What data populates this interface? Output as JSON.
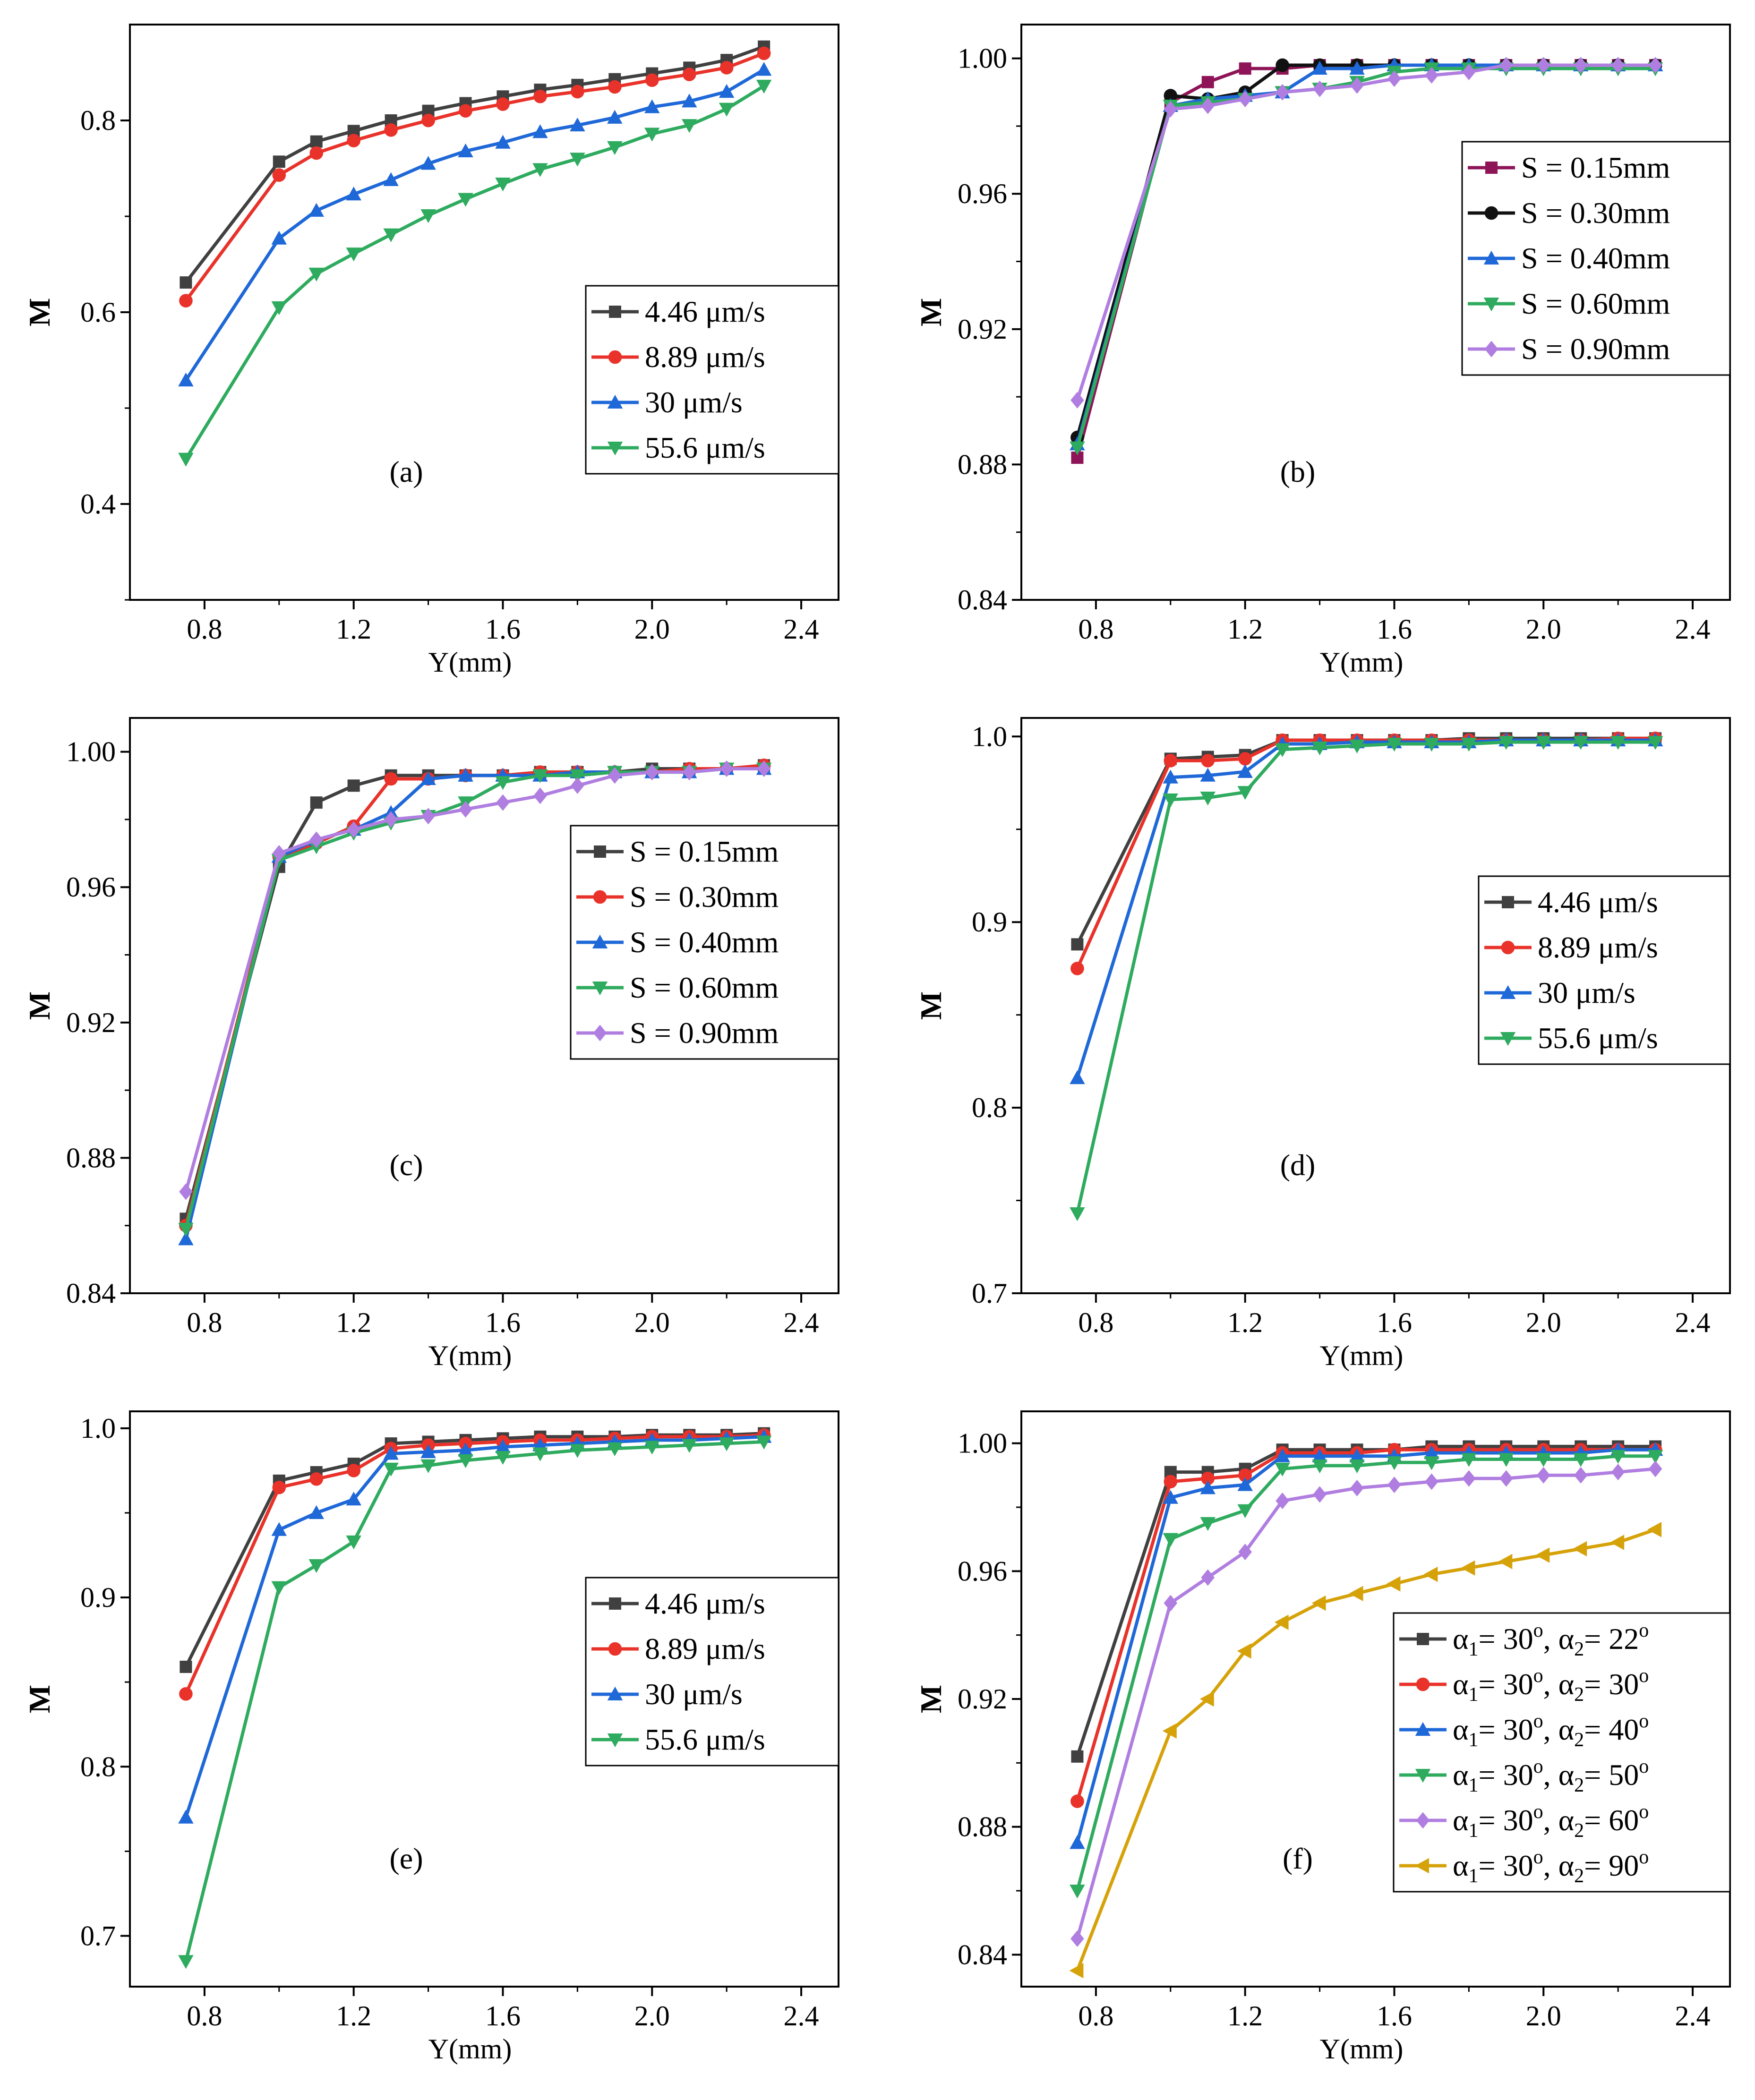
{
  "chart_data": [
    {
      "type": "line",
      "panel_label": "(a)",
      "xlabel": "Y(mm)",
      "ylabel": "M",
      "xlim": [
        0.6,
        2.5
      ],
      "ylim": [
        0.3,
        0.9
      ],
      "xticks": [
        "0.8",
        "1.2",
        "1.6",
        "2.0",
        "2.4"
      ],
      "xtick_values": [
        0.8,
        1.2,
        1.6,
        2.0,
        2.4
      ],
      "yticks": [
        "0.4",
        "0.6",
        "0.8"
      ],
      "ytick_values": [
        0.4,
        0.6,
        0.8
      ],
      "legend_position": "lower-right",
      "x": [
        0.75,
        1.0,
        1.1,
        1.2,
        1.3,
        1.4,
        1.5,
        1.6,
        1.7,
        1.8,
        1.9,
        2.0,
        2.1,
        2.2,
        2.3
      ],
      "series": [
        {
          "name": "4.46 μm/s",
          "color": "#404040",
          "marker": "square",
          "values": [
            0.631,
            0.757,
            0.778,
            0.789,
            0.8,
            0.81,
            0.818,
            0.825,
            0.832,
            0.837,
            0.843,
            0.849,
            0.855,
            0.863,
            0.877
          ]
        },
        {
          "name": "8.89 μm/s",
          "color": "#e8322a",
          "marker": "circle",
          "values": [
            0.612,
            0.743,
            0.766,
            0.779,
            0.79,
            0.8,
            0.81,
            0.817,
            0.825,
            0.83,
            0.835,
            0.842,
            0.848,
            0.855,
            0.87
          ]
        },
        {
          "name": "30 μm/s",
          "color": "#1f68d8",
          "marker": "triangle-up",
          "values": [
            0.529,
            0.677,
            0.706,
            0.723,
            0.738,
            0.755,
            0.768,
            0.777,
            0.788,
            0.795,
            0.803,
            0.814,
            0.82,
            0.83,
            0.853
          ]
        },
        {
          "name": "55.6 μm/s",
          "color": "#2eab5e",
          "marker": "triangle-down",
          "values": [
            0.447,
            0.605,
            0.64,
            0.661,
            0.681,
            0.701,
            0.718,
            0.734,
            0.749,
            0.76,
            0.772,
            0.786,
            0.795,
            0.812,
            0.836
          ]
        }
      ]
    },
    {
      "type": "line",
      "panel_label": "(b)",
      "xlabel": "Y(mm)",
      "ylabel": "M",
      "xlim": [
        0.6,
        2.5
      ],
      "ylim": [
        0.84,
        1.01
      ],
      "xticks": [
        "0.8",
        "1.2",
        "1.6",
        "2.0",
        "2.4"
      ],
      "xtick_values": [
        0.8,
        1.2,
        1.6,
        2.0,
        2.4
      ],
      "yticks": [
        "0.84",
        "0.88",
        "0.92",
        "0.96",
        "1.00"
      ],
      "ytick_values": [
        0.84,
        0.88,
        0.92,
        0.96,
        1.0
      ],
      "legend_position": "top-right",
      "x": [
        0.75,
        1.0,
        1.1,
        1.2,
        1.3,
        1.4,
        1.5,
        1.6,
        1.7,
        1.8,
        1.9,
        2.0,
        2.1,
        2.2,
        2.3
      ],
      "series": [
        {
          "name": "S = 0.15mm",
          "color": "#8e1457",
          "marker": "square",
          "values": [
            0.882,
            0.987,
            0.993,
            0.997,
            0.997,
            0.998,
            0.998,
            0.998,
            0.998,
            0.998,
            0.998,
            0.998,
            0.998,
            0.998,
            0.998
          ]
        },
        {
          "name": "S = 0.30mm",
          "color": "#111111",
          "marker": "circle",
          "values": [
            0.888,
            0.989,
            0.988,
            0.99,
            0.998,
            0.998,
            0.998,
            0.998,
            0.998,
            0.998,
            0.998,
            0.998,
            0.998,
            0.998,
            0.998
          ]
        },
        {
          "name": "S = 0.40mm",
          "color": "#1f68d8",
          "marker": "triangle-up",
          "values": [
            0.886,
            0.986,
            0.988,
            0.989,
            0.99,
            0.997,
            0.997,
            0.998,
            0.998,
            0.998,
            0.998,
            0.998,
            0.998,
            0.998,
            0.998
          ]
        },
        {
          "name": "S = 0.60mm",
          "color": "#2eab5e",
          "marker": "triangle-down",
          "values": [
            0.885,
            0.986,
            0.987,
            0.988,
            0.99,
            0.991,
            0.993,
            0.996,
            0.997,
            0.997,
            0.997,
            0.997,
            0.997,
            0.997,
            0.997
          ]
        },
        {
          "name": "S = 0.90mm",
          "color": "#b07ee0",
          "marker": "diamond",
          "values": [
            0.899,
            0.985,
            0.986,
            0.988,
            0.99,
            0.991,
            0.992,
            0.994,
            0.995,
            0.996,
            0.998,
            0.998,
            0.998,
            0.998,
            0.998
          ]
        }
      ]
    },
    {
      "type": "line",
      "panel_label": "(c)",
      "xlabel": "Y(mm)",
      "ylabel": "M",
      "xlim": [
        0.6,
        2.5
      ],
      "ylim": [
        0.84,
        1.01
      ],
      "xticks": [
        "0.8",
        "1.2",
        "1.6",
        "2.0",
        "2.4"
      ],
      "xtick_values": [
        0.8,
        1.2,
        1.6,
        2.0,
        2.4
      ],
      "yticks": [
        "0.84",
        "0.88",
        "0.92",
        "0.96",
        "1.00"
      ],
      "ytick_values": [
        0.84,
        0.88,
        0.92,
        0.96,
        1.0
      ],
      "legend_position": "top-right",
      "x": [
        0.75,
        1.0,
        1.1,
        1.2,
        1.3,
        1.4,
        1.5,
        1.6,
        1.7,
        1.8,
        1.9,
        2.0,
        2.1,
        2.2,
        2.3
      ],
      "series": [
        {
          "name": "S = 0.15mm",
          "color": "#404040",
          "marker": "square",
          "values": [
            0.862,
            0.966,
            0.985,
            0.99,
            0.993,
            0.993,
            0.993,
            0.993,
            0.994,
            0.994,
            0.994,
            0.995,
            0.995,
            0.995,
            0.996
          ]
        },
        {
          "name": "S = 0.30mm",
          "color": "#e8322a",
          "marker": "circle",
          "values": [
            0.86,
            0.969,
            0.973,
            0.978,
            0.992,
            0.992,
            0.993,
            0.993,
            0.994,
            0.994,
            0.994,
            0.994,
            0.995,
            0.995,
            0.996
          ]
        },
        {
          "name": "S = 0.40mm",
          "color": "#1f68d8",
          "marker": "triangle-up",
          "values": [
            0.856,
            0.969,
            0.974,
            0.977,
            0.982,
            0.992,
            0.993,
            0.993,
            0.993,
            0.994,
            0.994,
            0.994,
            0.994,
            0.995,
            0.995
          ]
        },
        {
          "name": "S = 0.60mm",
          "color": "#2eab5e",
          "marker": "triangle-down",
          "values": [
            0.859,
            0.968,
            0.972,
            0.976,
            0.979,
            0.981,
            0.985,
            0.991,
            0.993,
            0.993,
            0.994,
            0.994,
            0.994,
            0.995,
            0.995
          ]
        },
        {
          "name": "S = 0.90mm",
          "color": "#b07ee0",
          "marker": "diamond",
          "values": [
            0.87,
            0.97,
            0.974,
            0.977,
            0.98,
            0.981,
            0.983,
            0.985,
            0.987,
            0.99,
            0.993,
            0.994,
            0.994,
            0.995,
            0.995
          ]
        }
      ]
    },
    {
      "type": "line",
      "panel_label": "(d)",
      "xlabel": "Y(mm)",
      "ylabel": "M",
      "xlim": [
        0.6,
        2.5
      ],
      "ylim": [
        0.7,
        1.01
      ],
      "xticks": [
        "0.8",
        "1.2",
        "1.6",
        "2.0",
        "2.4"
      ],
      "xtick_values": [
        0.8,
        1.2,
        1.6,
        2.0,
        2.4
      ],
      "yticks": [
        "0.7",
        "0.8",
        "0.9",
        "1.0"
      ],
      "ytick_values": [
        0.7,
        0.8,
        0.9,
        1.0
      ],
      "legend_position": "right",
      "x": [
        0.75,
        1.0,
        1.1,
        1.2,
        1.3,
        1.4,
        1.5,
        1.6,
        1.7,
        1.8,
        1.9,
        2.0,
        2.1,
        2.2,
        2.3
      ],
      "series": [
        {
          "name": "4.46 μm/s",
          "color": "#404040",
          "marker": "square",
          "values": [
            0.888,
            0.988,
            0.989,
            0.99,
            0.998,
            0.998,
            0.998,
            0.998,
            0.998,
            0.999,
            0.999,
            0.999,
            0.999,
            0.999,
            0.999
          ]
        },
        {
          "name": "8.89 μm/s",
          "color": "#e8322a",
          "marker": "circle",
          "values": [
            0.875,
            0.987,
            0.987,
            0.988,
            0.998,
            0.998,
            0.998,
            0.998,
            0.998,
            0.998,
            0.998,
            0.998,
            0.998,
            0.999,
            0.999
          ]
        },
        {
          "name": "30 μm/s",
          "color": "#1f68d8",
          "marker": "triangle-up",
          "values": [
            0.816,
            0.978,
            0.979,
            0.981,
            0.996,
            0.996,
            0.997,
            0.997,
            0.997,
            0.997,
            0.998,
            0.998,
            0.998,
            0.998,
            0.998
          ]
        },
        {
          "name": "55.6 μm/s",
          "color": "#2eab5e",
          "marker": "triangle-down",
          "values": [
            0.743,
            0.966,
            0.967,
            0.97,
            0.993,
            0.994,
            0.995,
            0.996,
            0.996,
            0.996,
            0.997,
            0.997,
            0.997,
            0.997,
            0.997
          ]
        }
      ]
    },
    {
      "type": "line",
      "panel_label": "(e)",
      "xlabel": "Y(mm)",
      "ylabel": "M",
      "xlim": [
        0.6,
        2.5
      ],
      "ylim": [
        0.67,
        1.01
      ],
      "xticks": [
        "0.8",
        "1.2",
        "1.6",
        "2.0",
        "2.4"
      ],
      "xtick_values": [
        0.8,
        1.2,
        1.6,
        2.0,
        2.4
      ],
      "yticks": [
        "0.7",
        "0.8",
        "0.9",
        "1.0"
      ],
      "ytick_values": [
        0.7,
        0.8,
        0.9,
        1.0
      ],
      "legend_position": "right",
      "x": [
        0.75,
        1.0,
        1.1,
        1.2,
        1.3,
        1.4,
        1.5,
        1.6,
        1.7,
        1.8,
        1.9,
        2.0,
        2.1,
        2.2,
        2.3
      ],
      "series": [
        {
          "name": "4.46 μm/s",
          "color": "#404040",
          "marker": "square",
          "values": [
            0.859,
            0.969,
            0.974,
            0.979,
            0.991,
            0.992,
            0.993,
            0.994,
            0.995,
            0.995,
            0.995,
            0.996,
            0.996,
            0.996,
            0.997
          ]
        },
        {
          "name": "8.89 μm/s",
          "color": "#e8322a",
          "marker": "circle",
          "values": [
            0.843,
            0.965,
            0.97,
            0.975,
            0.988,
            0.99,
            0.991,
            0.992,
            0.993,
            0.993,
            0.994,
            0.995,
            0.995,
            0.995,
            0.996
          ]
        },
        {
          "name": "30 μm/s",
          "color": "#1f68d8",
          "marker": "triangle-up",
          "values": [
            0.77,
            0.94,
            0.95,
            0.958,
            0.985,
            0.986,
            0.987,
            0.989,
            0.99,
            0.991,
            0.992,
            0.993,
            0.993,
            0.994,
            0.995
          ]
        },
        {
          "name": "55.6 μm/s",
          "color": "#2eab5e",
          "marker": "triangle-down",
          "values": [
            0.685,
            0.906,
            0.919,
            0.933,
            0.976,
            0.978,
            0.981,
            0.983,
            0.985,
            0.987,
            0.988,
            0.989,
            0.99,
            0.991,
            0.992
          ]
        }
      ]
    },
    {
      "type": "line",
      "panel_label": "(f)",
      "xlabel": "Y(mm)",
      "ylabel": "M",
      "xlim": [
        0.6,
        2.5
      ],
      "ylim": [
        0.83,
        1.01
      ],
      "xticks": [
        "0.8",
        "1.2",
        "1.6",
        "2.0",
        "2.4"
      ],
      "xtick_values": [
        0.8,
        1.2,
        1.6,
        2.0,
        2.4
      ],
      "yticks": [
        "0.84",
        "0.88",
        "0.92",
        "0.96",
        "1.00"
      ],
      "ytick_values": [
        0.84,
        0.88,
        0.92,
        0.96,
        1.0
      ],
      "legend_position": "lower-right",
      "x": [
        0.75,
        1.0,
        1.1,
        1.2,
        1.3,
        1.4,
        1.5,
        1.6,
        1.7,
        1.8,
        1.9,
        2.0,
        2.1,
        2.2,
        2.3
      ],
      "series": [
        {
          "name": "α1= 30o, α2= 22o",
          "a1": "30",
          "a2": "22",
          "color": "#404040",
          "marker": "square",
          "values": [
            0.902,
            0.991,
            0.991,
            0.992,
            0.998,
            0.998,
            0.998,
            0.998,
            0.999,
            0.999,
            0.999,
            0.999,
            0.999,
            0.999,
            0.999
          ]
        },
        {
          "name": "α1= 30o, α2= 30o",
          "a1": "30",
          "a2": "30",
          "color": "#e8322a",
          "marker": "circle",
          "values": [
            0.888,
            0.988,
            0.989,
            0.99,
            0.997,
            0.997,
            0.997,
            0.998,
            0.998,
            0.998,
            0.998,
            0.998,
            0.998,
            0.998,
            0.998
          ]
        },
        {
          "name": "α1= 30o, α2= 40o",
          "a1": "30",
          "a2": "40",
          "color": "#1f68d8",
          "marker": "triangle-up",
          "values": [
            0.875,
            0.983,
            0.986,
            0.987,
            0.996,
            0.996,
            0.996,
            0.996,
            0.997,
            0.997,
            0.997,
            0.997,
            0.997,
            0.998,
            0.998
          ]
        },
        {
          "name": "α1= 30o, α2= 50o",
          "a1": "30",
          "a2": "50",
          "color": "#2eab5e",
          "marker": "triangle-down",
          "values": [
            0.86,
            0.97,
            0.975,
            0.979,
            0.992,
            0.993,
            0.993,
            0.994,
            0.994,
            0.995,
            0.995,
            0.995,
            0.995,
            0.996,
            0.996
          ]
        },
        {
          "name": "α1= 30o, α2= 60o",
          "a1": "30",
          "a2": "60",
          "color": "#b07ee0",
          "marker": "diamond",
          "values": [
            0.845,
            0.95,
            0.958,
            0.966,
            0.982,
            0.984,
            0.986,
            0.987,
            0.988,
            0.989,
            0.989,
            0.99,
            0.99,
            0.991,
            0.992
          ]
        },
        {
          "name": "α1= 30o, α2= 90o",
          "a1": "30",
          "a2": "90",
          "color": "#d6a20a",
          "marker": "triangle-left",
          "values": [
            0.835,
            0.91,
            0.92,
            0.935,
            0.944,
            0.95,
            0.953,
            0.956,
            0.959,
            0.961,
            0.963,
            0.965,
            0.967,
            0.969,
            0.973
          ]
        }
      ]
    }
  ]
}
